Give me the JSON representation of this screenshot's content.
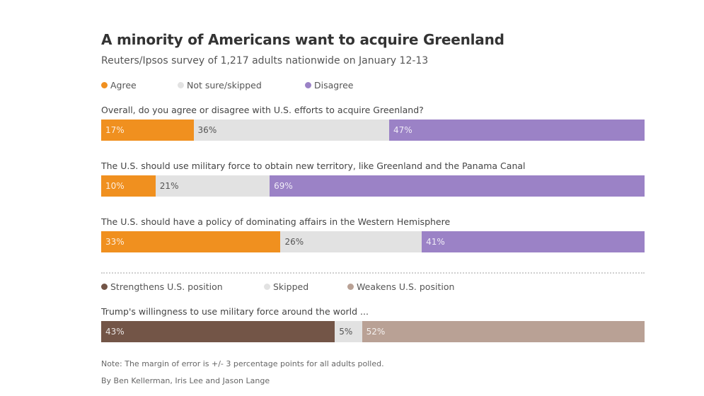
{
  "chart_data": [
    {
      "type": "bar",
      "orientation": "horizontal-stacked-100",
      "title": "A minority of Americans want to acquire Greenland",
      "subtitle": "Reuters/Ipsos survey of 1,217 adults nationwide on January 12-13",
      "legend": [
        {
          "name": "Agree",
          "color": "#f0901f"
        },
        {
          "name": "Not sure/skipped",
          "color": "#e2e2e2"
        },
        {
          "name": "Disagree",
          "color": "#9b82c6"
        }
      ],
      "categories": [
        "Overall, do you agree or disagree with U.S. efforts to acquire Greenland?",
        "The U.S. should use military force to obtain new territory, like Greenland and the Panama Canal",
        "The U.S. should have a policy of dominating affairs in the Western Hemisphere"
      ],
      "series": [
        {
          "name": "Agree",
          "values": [
            17,
            10,
            33
          ],
          "labels": [
            "17%",
            "10%",
            "33%"
          ]
        },
        {
          "name": "Not sure/skipped",
          "values": [
            36,
            21,
            26
          ],
          "labels": [
            "36%",
            "21%",
            "26%"
          ]
        },
        {
          "name": "Disagree",
          "values": [
            47,
            69,
            41
          ],
          "labels": [
            "47%",
            "69%",
            "41%"
          ]
        }
      ]
    },
    {
      "type": "bar",
      "orientation": "horizontal-stacked-100",
      "legend": [
        {
          "name": "Strengthens U.S. position",
          "color": "#735547"
        },
        {
          "name": "Skipped",
          "color": "#e2e2e2"
        },
        {
          "name": "Weakens U.S. position",
          "color": "#b9a195"
        }
      ],
      "categories": [
        "Trump's willingness to use military force around the world ..."
      ],
      "series": [
        {
          "name": "Strengthens U.S. position",
          "values": [
            43
          ],
          "labels": [
            "43%"
          ]
        },
        {
          "name": "Skipped",
          "values": [
            5
          ],
          "labels": [
            "5%"
          ]
        },
        {
          "name": "Weakens U.S. position",
          "values": [
            52
          ],
          "labels": [
            "52%"
          ]
        }
      ]
    }
  ],
  "footer": {
    "note": "Note:  The margin of error is +/- 3 percentage points for all adults polled.",
    "byline": "By Ben Kellerman, Iris Lee and Jason Lange"
  }
}
